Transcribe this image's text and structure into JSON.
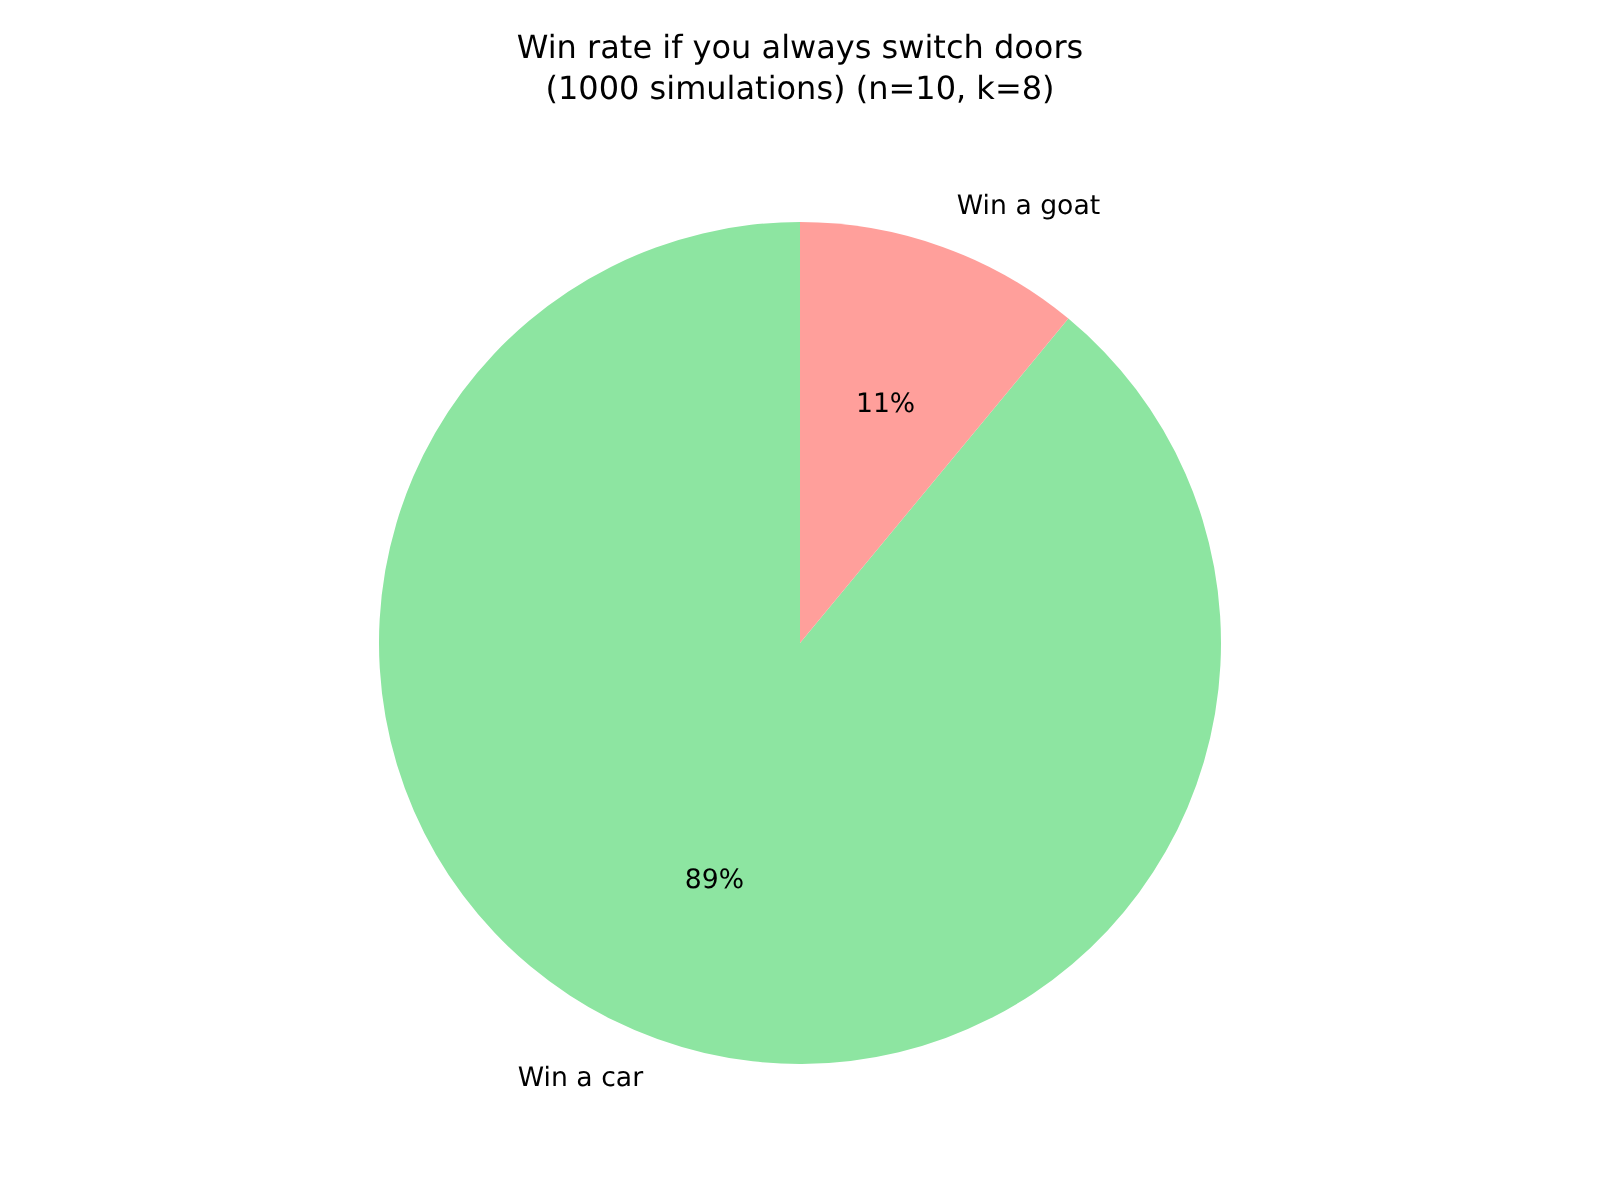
{
  "chart_data": {
    "type": "pie",
    "title": "Win rate if you always switch doors\n(1000 simulations) (n=10, k=8)",
    "categories": [
      "Win a car",
      "Win a goat"
    ],
    "values": [
      89,
      11
    ],
    "colors": [
      "#8de5a1",
      "#ff9f9b"
    ],
    "value_labels": [
      "89%",
      "11%"
    ]
  }
}
